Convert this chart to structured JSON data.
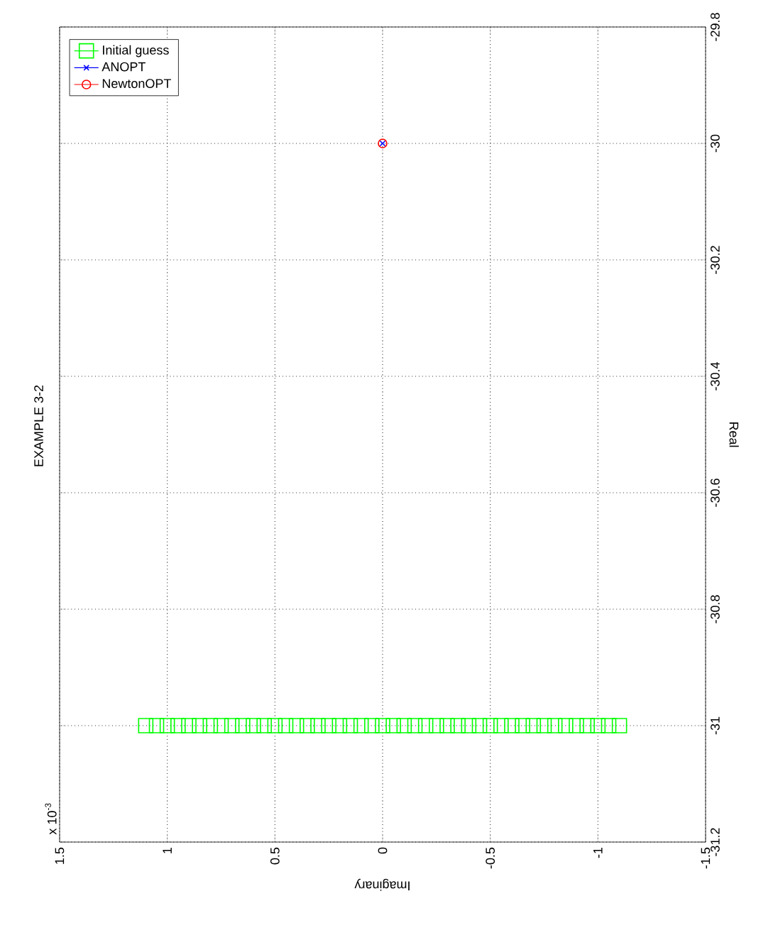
{
  "chart_data": {
    "type": "scatter",
    "title": "EXAMPLE 3-2",
    "xlabel": "Imaginary",
    "ylabel": "Real",
    "annotations": [
      "x 10$^{-3}$"
    ],
    "xlim": [
      1.5,
      -1.5
    ],
    "xticks": [
      1.5,
      1,
      0.5,
      0,
      -0.5,
      -1,
      -1.5
    ],
    "ylim": [
      -31.2,
      -29.8
    ],
    "yticks": [
      -31.2,
      -31,
      -30.8,
      -30.6,
      -30.4,
      -30.2,
      -30,
      -29.8
    ],
    "grid": true,
    "legend": "top left",
    "series": [
      {
        "name": "Initial guess",
        "color": "#00ff00",
        "marker": "square",
        "x": [
          1.1,
          1.05,
          1,
          0.95,
          0.9,
          0.85,
          0.8,
          0.75,
          0.7,
          0.65,
          0.6,
          0.55,
          0.5,
          0.45,
          0.4,
          0.35,
          0.3,
          0.25,
          0.2,
          0.15,
          0.1,
          0.05,
          0,
          -0.05,
          -0.1,
          -0.15,
          -0.2,
          -0.25,
          -0.3,
          -0.35,
          -0.4,
          -0.45,
          -0.5,
          -0.55,
          -0.6,
          -0.65,
          -0.7,
          -0.75,
          -0.8,
          -0.85,
          -0.9,
          -0.95,
          -1,
          -1.05,
          -1.1
        ],
        "values": [
          -31,
          -31,
          -31,
          -31,
          -31,
          -31,
          -31,
          -31,
          -31,
          -31,
          -31,
          -31,
          -31,
          -31,
          -31,
          -31,
          -31,
          -31,
          -31,
          -31,
          -31,
          -31,
          -31,
          -31,
          -31,
          -31,
          -31,
          -31,
          -31,
          -31,
          -31,
          -31,
          -31,
          -31,
          -31,
          -31,
          -31,
          -31,
          -31,
          -31,
          -31,
          -31,
          -31,
          -31,
          -31
        ]
      },
      {
        "name": "ANOPT",
        "color": "#0000ff",
        "marker": "cross",
        "x": [
          0
        ],
        "values": [
          -30
        ]
      },
      {
        "name": "NewtonOPT",
        "color": "#ff0000",
        "marker": "circle",
        "x": [
          0
        ],
        "values": [
          -30
        ]
      }
    ]
  }
}
